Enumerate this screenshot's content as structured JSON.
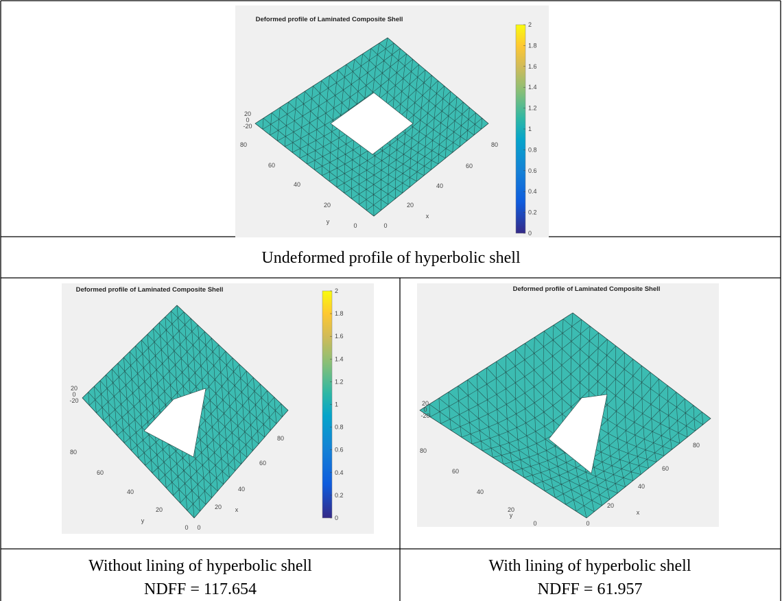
{
  "figures": [
    {
      "title": "Deformed profile of Laminated Composite Shell",
      "x_label": "x",
      "y_label": "y",
      "x_ticks": [
        "0",
        "20",
        "40",
        "60",
        "80"
      ],
      "y_ticks": [
        "0",
        "20",
        "40",
        "60",
        "80"
      ],
      "z_ticks": [
        "-20",
        "0",
        "20"
      ],
      "colorbar_ticks": [
        "0",
        "0.2",
        "0.4",
        "0.6",
        "0.8",
        "1",
        "1.2",
        "1.4",
        "1.6",
        "1.8",
        "2"
      ]
    },
    {
      "title": "Deformed profile of Laminated Composite Shell",
      "x_label": "x",
      "y_label": "y",
      "x_ticks": [
        "0",
        "20",
        "40",
        "60",
        "80"
      ],
      "y_ticks": [
        "0",
        "20",
        "40",
        "60",
        "80"
      ],
      "z_ticks": [
        "-20",
        "0",
        "20"
      ],
      "colorbar_ticks": [
        "0",
        "0.2",
        "0.4",
        "0.6",
        "0.8",
        "1",
        "1.2",
        "1.4",
        "1.6",
        "1.8",
        "2"
      ]
    },
    {
      "title": "Deformed profile of Laminated Composite Shell",
      "x_label": "x",
      "y_label": "y",
      "x_ticks": [
        "0",
        "20",
        "40",
        "60",
        "80"
      ],
      "y_ticks": [
        "0",
        "20",
        "40",
        "60",
        "80"
      ],
      "z_ticks": [
        "-20",
        "0",
        "20"
      ]
    }
  ],
  "captions": {
    "top": "Undeformed profile of hyperbolic shell",
    "left": [
      "Without lining of hyperbolic shell",
      "NDFF = 117.654"
    ],
    "right": [
      "With lining of hyperbolic shell",
      "NDFF = 61.957"
    ]
  }
}
